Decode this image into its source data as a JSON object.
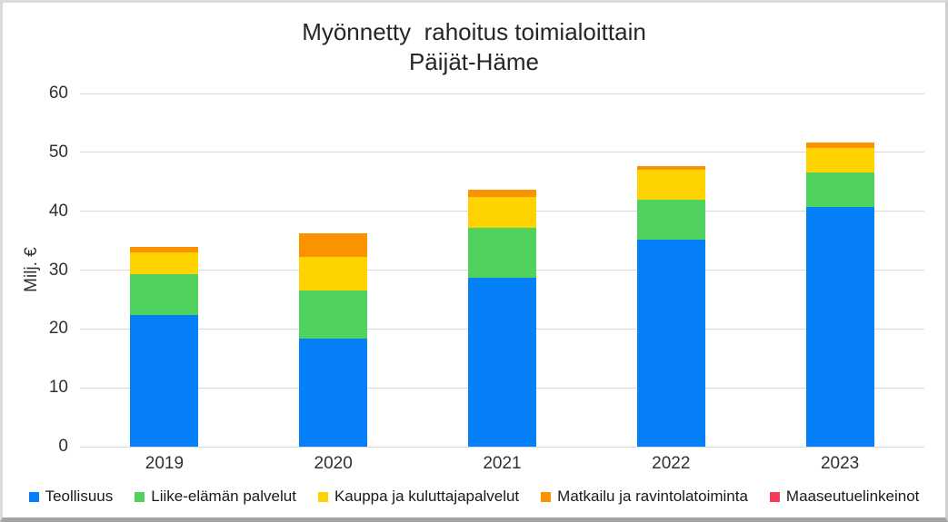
{
  "title": {
    "line1": "Myönnetty  rahoitus toimialoittain",
    "line2": "Päijät-Häme"
  },
  "y_axis": {
    "label": "Milj. €",
    "ticks": [
      60,
      50,
      40,
      30,
      20,
      10,
      0
    ]
  },
  "x_axis": {
    "labels": [
      "2019",
      "2020",
      "2021",
      "2022",
      "2023"
    ]
  },
  "colors": {
    "teollisuus": "#0680f8",
    "liike_elaman_palvelut": "#4fd35e",
    "kauppa_ja_kuluttajapalvelut": "#ffd300",
    "matkailu_ja_ravintolatoiminta": "#fb9200",
    "maaseutuelinkeinot": "#f93a5b",
    "gridline": "#d9d9d9",
    "text": "#262626"
  },
  "chart_data": {
    "type": "bar",
    "stacked": true,
    "title": "Myönnetty rahoitus toimialoittain Päijät-Häme",
    "xlabel": "",
    "ylabel": "Milj. €",
    "ylim": [
      0,
      60
    ],
    "ytick_step": 10,
    "grid": true,
    "legend_position": "bottom",
    "categories": [
      "2019",
      "2020",
      "2021",
      "2022",
      "2023"
    ],
    "series": [
      {
        "name": "Teollisuus",
        "color": "#0680f8",
        "values": [
          22.3,
          18.4,
          28.7,
          35.1,
          40.7
        ]
      },
      {
        "name": "Liike-elämän palvelut",
        "color": "#4fd35e",
        "values": [
          7.0,
          8.2,
          8.4,
          6.9,
          5.9
        ]
      },
      {
        "name": "Kauppa ja kuluttajapalvelut",
        "color": "#ffd300",
        "values": [
          3.7,
          5.7,
          5.3,
          5.0,
          4.2
        ]
      },
      {
        "name": "Matkailu ja ravintolatoiminta",
        "color": "#fb9200",
        "values": [
          0.9,
          4.0,
          1.2,
          0.7,
          0.8
        ]
      },
      {
        "name": "Maaseutuelinkeinot",
        "color": "#f93a5b",
        "values": [
          0,
          0,
          0,
          0,
          0
        ]
      }
    ]
  }
}
